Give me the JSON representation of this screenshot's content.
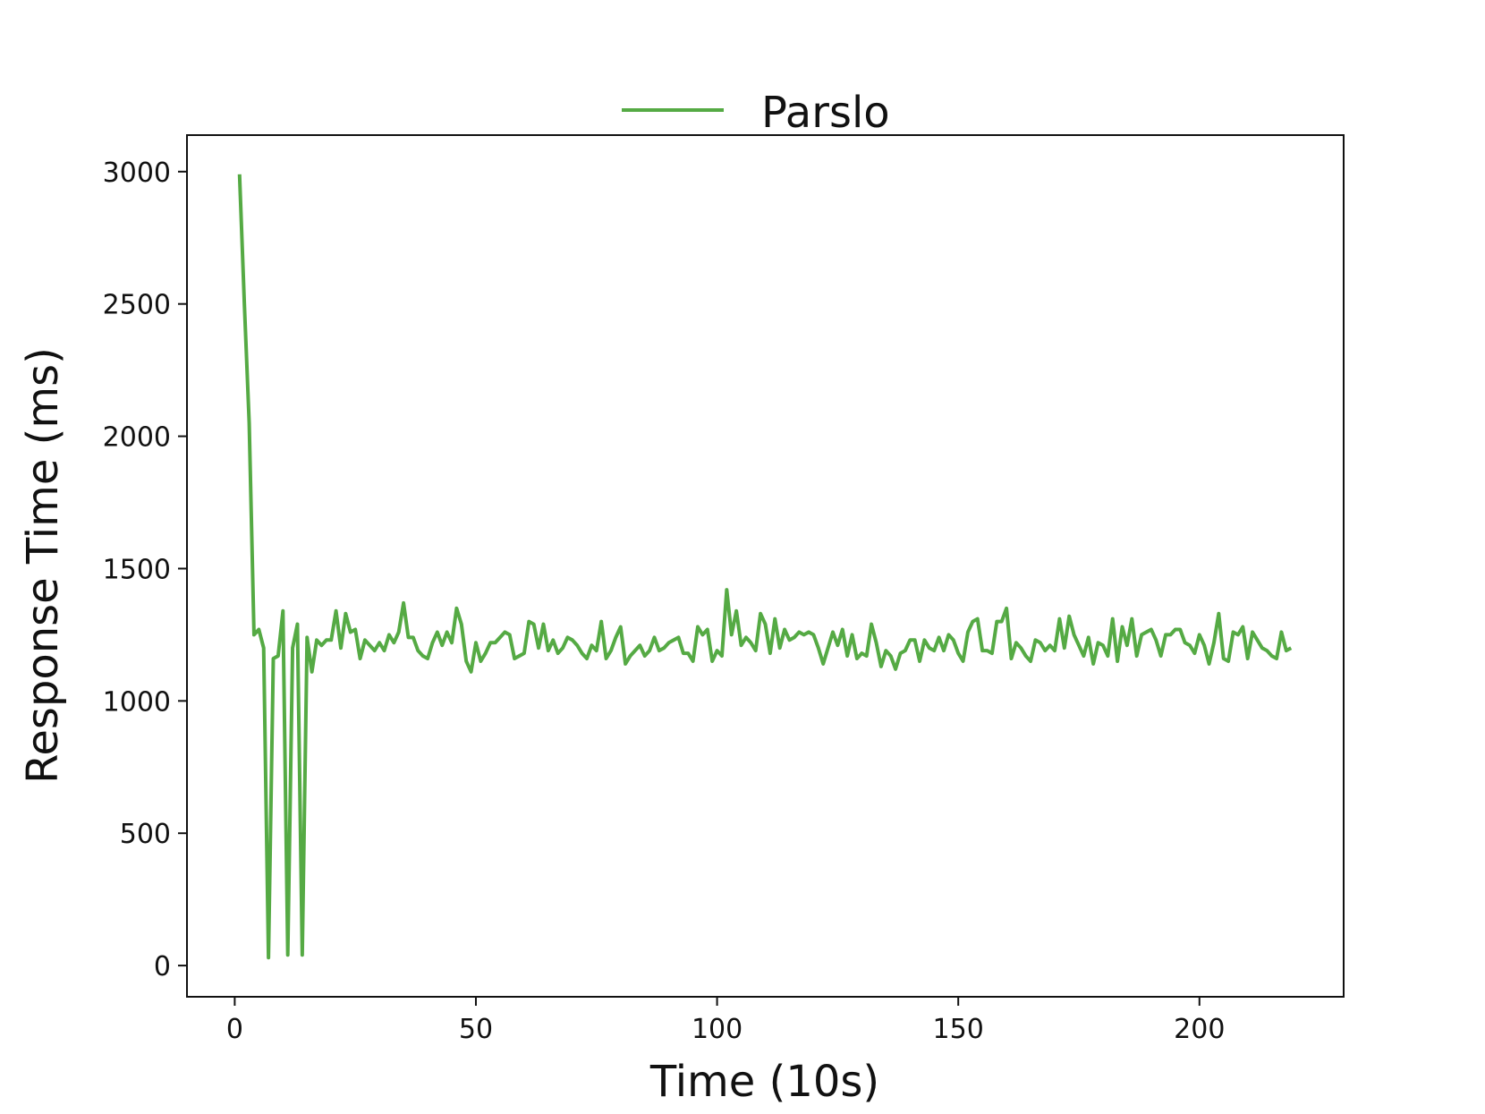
{
  "chart_data": {
    "type": "line",
    "xlabel": "Time (10s)",
    "ylabel": "Response Time (ms)",
    "legend": "top",
    "xlim": [
      -9.9,
      229.9
    ],
    "xticks": [
      0,
      50,
      100,
      150,
      200
    ],
    "ylim": [
      -118,
      3138
    ],
    "yticks": [
      0,
      500,
      1000,
      1500,
      2000,
      2500,
      3000
    ],
    "x": [
      1,
      2,
      3,
      4,
      5,
      6,
      7,
      8,
      9,
      10,
      11,
      12,
      13,
      14,
      15,
      16,
      17,
      18,
      19,
      20,
      21,
      22,
      23,
      24,
      25,
      26,
      27,
      28,
      29,
      30,
      31,
      32,
      33,
      34,
      35,
      36,
      37,
      38,
      39,
      40,
      41,
      42,
      43,
      44,
      45,
      46,
      47,
      48,
      49,
      50,
      51,
      52,
      53,
      54,
      55,
      56,
      57,
      58,
      59,
      60,
      61,
      62,
      63,
      64,
      65,
      66,
      67,
      68,
      69,
      70,
      71,
      72,
      73,
      74,
      75,
      76,
      77,
      78,
      79,
      80,
      81,
      82,
      83,
      84,
      85,
      86,
      87,
      88,
      89,
      90,
      91,
      92,
      93,
      94,
      95,
      96,
      97,
      98,
      99,
      100,
      101,
      102,
      103,
      104,
      105,
      106,
      107,
      108,
      109,
      110,
      111,
      112,
      113,
      114,
      115,
      116,
      117,
      118,
      119,
      120,
      121,
      122,
      123,
      124,
      125,
      126,
      127,
      128,
      129,
      130,
      131,
      132,
      133,
      134,
      135,
      136,
      137,
      138,
      139,
      140,
      141,
      142,
      143,
      144,
      145,
      146,
      147,
      148,
      149,
      150,
      151,
      152,
      153,
      154,
      155,
      156,
      157,
      158,
      159,
      160,
      161,
      162,
      163,
      164,
      165,
      166,
      167,
      168,
      169,
      170,
      171,
      172,
      173,
      174,
      175,
      176,
      177,
      178,
      179,
      180,
      181,
      182,
      183,
      184,
      185,
      186,
      187,
      188,
      189,
      190,
      191,
      192,
      193,
      194,
      195,
      196,
      197,
      198,
      199,
      200,
      201,
      202,
      203,
      204,
      205,
      206,
      207,
      208,
      209,
      210,
      211,
      212,
      213,
      214,
      215,
      216,
      217,
      218,
      219
    ],
    "series": [
      {
        "name": "Parslo",
        "color": "#55aa44",
        "values": [
          2990,
          2500,
          2050,
          1250,
          1270,
          1200,
          30,
          1160,
          1170,
          1340,
          40,
          1200,
          1290,
          40,
          1240,
          1110,
          1230,
          1210,
          1230,
          1230,
          1340,
          1200,
          1330,
          1260,
          1270,
          1160,
          1230,
          1210,
          1190,
          1220,
          1190,
          1250,
          1220,
          1260,
          1370,
          1240,
          1240,
          1190,
          1170,
          1160,
          1220,
          1260,
          1210,
          1260,
          1220,
          1350,
          1290,
          1150,
          1110,
          1220,
          1150,
          1180,
          1220,
          1220,
          1240,
          1260,
          1250,
          1160,
          1170,
          1180,
          1300,
          1290,
          1200,
          1290,
          1190,
          1230,
          1180,
          1200,
          1240,
          1230,
          1210,
          1180,
          1160,
          1210,
          1190,
          1300,
          1160,
          1190,
          1240,
          1280,
          1140,
          1170,
          1190,
          1210,
          1170,
          1190,
          1240,
          1190,
          1200,
          1220,
          1230,
          1240,
          1180,
          1180,
          1150,
          1280,
          1250,
          1270,
          1150,
          1190,
          1170,
          1420,
          1250,
          1340,
          1210,
          1240,
          1220,
          1190,
          1330,
          1290,
          1180,
          1310,
          1200,
          1270,
          1230,
          1240,
          1260,
          1250,
          1260,
          1250,
          1200,
          1140,
          1200,
          1260,
          1210,
          1270,
          1170,
          1250,
          1160,
          1180,
          1170,
          1290,
          1220,
          1130,
          1190,
          1170,
          1120,
          1180,
          1190,
          1230,
          1230,
          1150,
          1230,
          1200,
          1190,
          1240,
          1190,
          1250,
          1230,
          1180,
          1150,
          1260,
          1300,
          1310,
          1190,
          1190,
          1180,
          1300,
          1300,
          1350,
          1160,
          1220,
          1200,
          1170,
          1150,
          1230,
          1220,
          1190,
          1210,
          1190,
          1310,
          1200,
          1320,
          1250,
          1210,
          1170,
          1240,
          1140,
          1220,
          1210,
          1170,
          1310,
          1150,
          1280,
          1210,
          1310,
          1170,
          1250,
          1260,
          1270,
          1230,
          1170,
          1250,
          1250,
          1270,
          1270,
          1220,
          1210,
          1180,
          1250,
          1210,
          1140,
          1220,
          1330,
          1160,
          1150,
          1260,
          1250,
          1280,
          1160,
          1260,
          1230,
          1200,
          1190,
          1170,
          1160,
          1260,
          1190,
          1200
        ]
      }
    ]
  }
}
